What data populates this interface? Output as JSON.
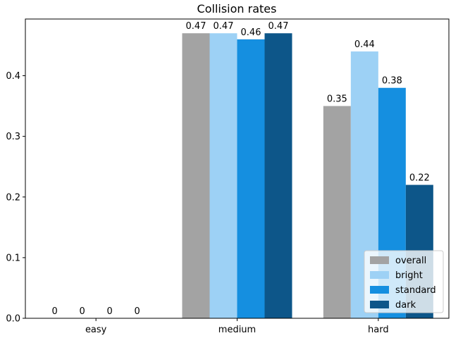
{
  "chart_data": {
    "type": "bar",
    "title": "Collision rates",
    "xlabel": "",
    "ylabel": "",
    "categories": [
      "easy",
      "medium",
      "hard"
    ],
    "series": [
      {
        "name": "overall",
        "color": "#a3a3a3",
        "values": [
          0,
          0.47,
          0.35
        ]
      },
      {
        "name": "bright",
        "color": "#9dd1f5",
        "values": [
          0,
          0.47,
          0.44
        ]
      },
      {
        "name": "standard",
        "color": "#158fe0",
        "values": [
          0,
          0.46,
          0.38
        ]
      },
      {
        "name": "dark",
        "color": "#0d5689",
        "values": [
          0,
          0.47,
          0.22
        ]
      }
    ],
    "data_labels": [
      [
        "0",
        "0.47",
        "0.35"
      ],
      [
        "0",
        "0.47",
        "0.44"
      ],
      [
        "0",
        "0.46",
        "0.38"
      ],
      [
        "0",
        "0.47",
        "0.22"
      ]
    ],
    "ylim": [
      0,
      0.4935
    ],
    "yticks": [
      0.0,
      0.1,
      0.2,
      0.3,
      0.4
    ],
    "ytick_labels": [
      "0.0",
      "0.1",
      "0.2",
      "0.3",
      "0.4"
    ],
    "grid": false,
    "legend": "lower-right"
  }
}
